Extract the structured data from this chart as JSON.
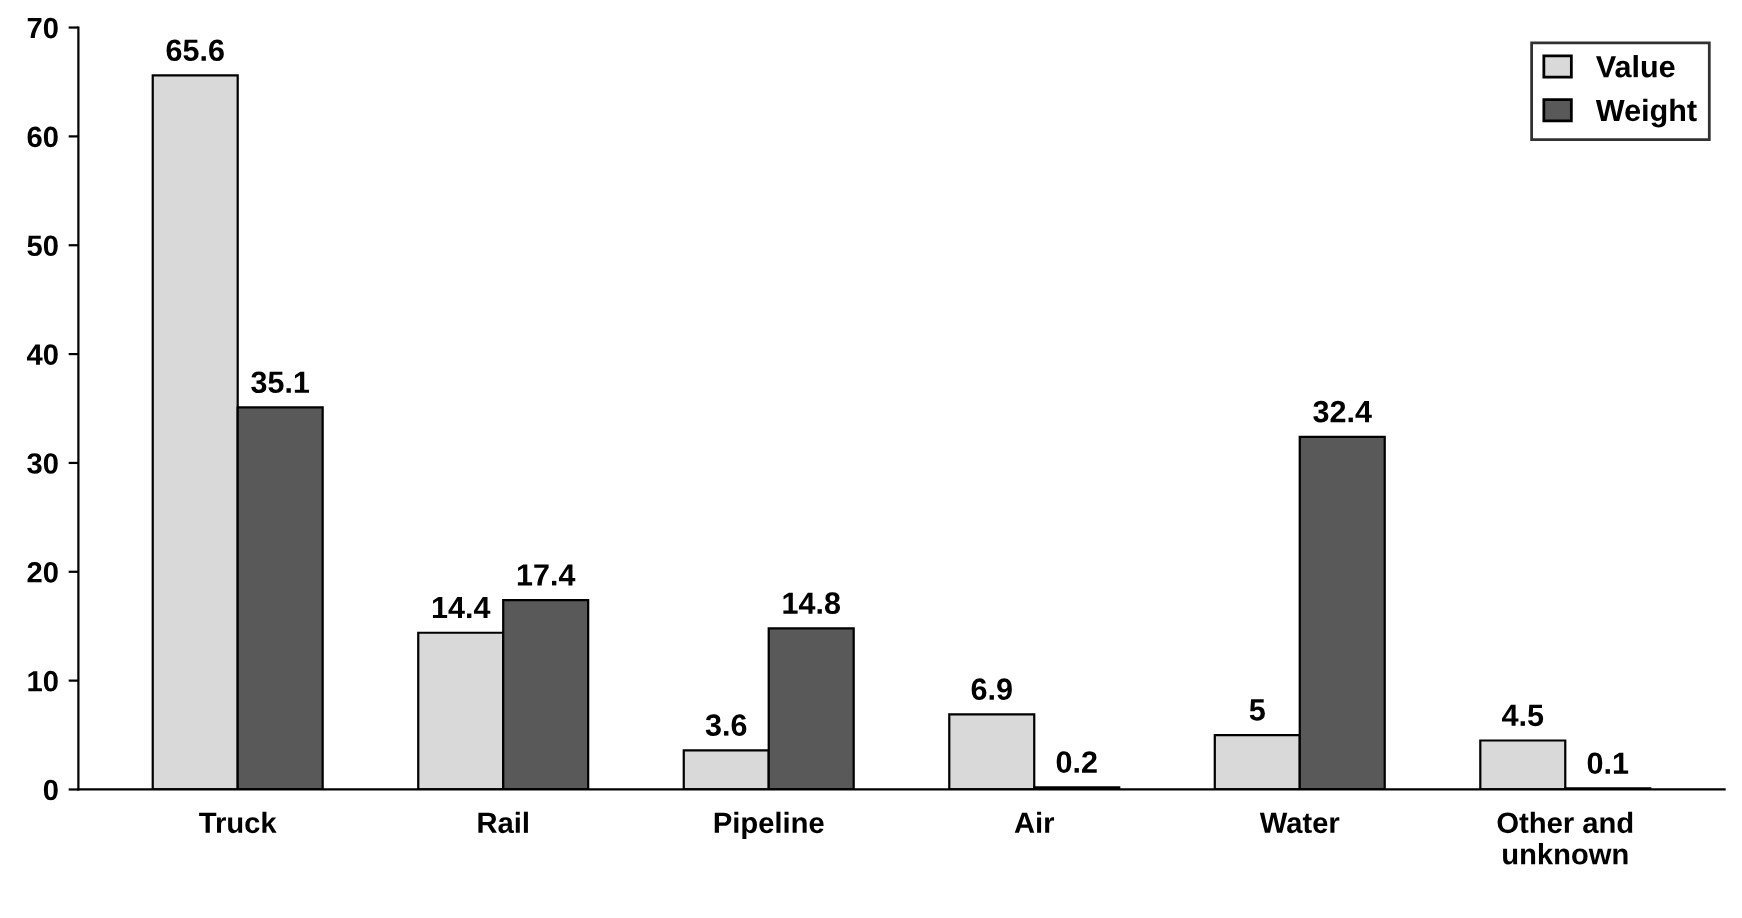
{
  "chart_data": {
    "type": "bar",
    "categories": [
      "Truck",
      "Rail",
      "Pipeline",
      "Air",
      "Water",
      "Other and\nunknown"
    ],
    "series": [
      {
        "name": "Value",
        "color": "#d9d9d9",
        "values": [
          65.6,
          14.4,
          3.6,
          6.9,
          5,
          4.5
        ]
      },
      {
        "name": "Weight",
        "color": "#595959",
        "values": [
          35.1,
          17.4,
          14.8,
          0.2,
          32.4,
          0.1
        ]
      }
    ],
    "ylim": [
      0,
      70
    ],
    "yticks": [
      0,
      10,
      20,
      30,
      40,
      50,
      60,
      70
    ],
    "grid": false,
    "legend": "top right",
    "data_labels": true
  }
}
